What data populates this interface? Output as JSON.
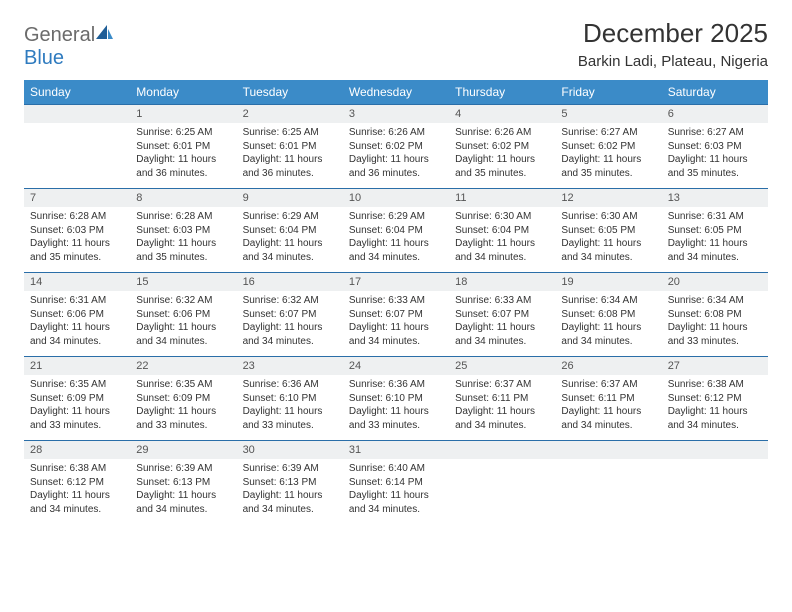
{
  "brand": {
    "part1": "General",
    "part2": "Blue"
  },
  "title": "December 2025",
  "location": "Barkin Ladi, Plateau, Nigeria",
  "colors": {
    "header_bg": "#3b8bc8",
    "header_text": "#ffffff",
    "daynum_bg": "#eef0f1",
    "daynum_border": "#2a6ea8",
    "text": "#333333",
    "logo_gray": "#6b6b6b",
    "logo_blue": "#2f7bbf"
  },
  "weekdays": [
    "Sunday",
    "Monday",
    "Tuesday",
    "Wednesday",
    "Thursday",
    "Friday",
    "Saturday"
  ],
  "weeks": [
    [
      null,
      {
        "n": "1",
        "sr": "6:25 AM",
        "ss": "6:01 PM",
        "dl": "11 hours and 36 minutes."
      },
      {
        "n": "2",
        "sr": "6:25 AM",
        "ss": "6:01 PM",
        "dl": "11 hours and 36 minutes."
      },
      {
        "n": "3",
        "sr": "6:26 AM",
        "ss": "6:02 PM",
        "dl": "11 hours and 36 minutes."
      },
      {
        "n": "4",
        "sr": "6:26 AM",
        "ss": "6:02 PM",
        "dl": "11 hours and 35 minutes."
      },
      {
        "n": "5",
        "sr": "6:27 AM",
        "ss": "6:02 PM",
        "dl": "11 hours and 35 minutes."
      },
      {
        "n": "6",
        "sr": "6:27 AM",
        "ss": "6:03 PM",
        "dl": "11 hours and 35 minutes."
      }
    ],
    [
      {
        "n": "7",
        "sr": "6:28 AM",
        "ss": "6:03 PM",
        "dl": "11 hours and 35 minutes."
      },
      {
        "n": "8",
        "sr": "6:28 AM",
        "ss": "6:03 PM",
        "dl": "11 hours and 35 minutes."
      },
      {
        "n": "9",
        "sr": "6:29 AM",
        "ss": "6:04 PM",
        "dl": "11 hours and 34 minutes."
      },
      {
        "n": "10",
        "sr": "6:29 AM",
        "ss": "6:04 PM",
        "dl": "11 hours and 34 minutes."
      },
      {
        "n": "11",
        "sr": "6:30 AM",
        "ss": "6:04 PM",
        "dl": "11 hours and 34 minutes."
      },
      {
        "n": "12",
        "sr": "6:30 AM",
        "ss": "6:05 PM",
        "dl": "11 hours and 34 minutes."
      },
      {
        "n": "13",
        "sr": "6:31 AM",
        "ss": "6:05 PM",
        "dl": "11 hours and 34 minutes."
      }
    ],
    [
      {
        "n": "14",
        "sr": "6:31 AM",
        "ss": "6:06 PM",
        "dl": "11 hours and 34 minutes."
      },
      {
        "n": "15",
        "sr": "6:32 AM",
        "ss": "6:06 PM",
        "dl": "11 hours and 34 minutes."
      },
      {
        "n": "16",
        "sr": "6:32 AM",
        "ss": "6:07 PM",
        "dl": "11 hours and 34 minutes."
      },
      {
        "n": "17",
        "sr": "6:33 AM",
        "ss": "6:07 PM",
        "dl": "11 hours and 34 minutes."
      },
      {
        "n": "18",
        "sr": "6:33 AM",
        "ss": "6:07 PM",
        "dl": "11 hours and 34 minutes."
      },
      {
        "n": "19",
        "sr": "6:34 AM",
        "ss": "6:08 PM",
        "dl": "11 hours and 34 minutes."
      },
      {
        "n": "20",
        "sr": "6:34 AM",
        "ss": "6:08 PM",
        "dl": "11 hours and 33 minutes."
      }
    ],
    [
      {
        "n": "21",
        "sr": "6:35 AM",
        "ss": "6:09 PM",
        "dl": "11 hours and 33 minutes."
      },
      {
        "n": "22",
        "sr": "6:35 AM",
        "ss": "6:09 PM",
        "dl": "11 hours and 33 minutes."
      },
      {
        "n": "23",
        "sr": "6:36 AM",
        "ss": "6:10 PM",
        "dl": "11 hours and 33 minutes."
      },
      {
        "n": "24",
        "sr": "6:36 AM",
        "ss": "6:10 PM",
        "dl": "11 hours and 33 minutes."
      },
      {
        "n": "25",
        "sr": "6:37 AM",
        "ss": "6:11 PM",
        "dl": "11 hours and 34 minutes."
      },
      {
        "n": "26",
        "sr": "6:37 AM",
        "ss": "6:11 PM",
        "dl": "11 hours and 34 minutes."
      },
      {
        "n": "27",
        "sr": "6:38 AM",
        "ss": "6:12 PM",
        "dl": "11 hours and 34 minutes."
      }
    ],
    [
      {
        "n": "28",
        "sr": "6:38 AM",
        "ss": "6:12 PM",
        "dl": "11 hours and 34 minutes."
      },
      {
        "n": "29",
        "sr": "6:39 AM",
        "ss": "6:13 PM",
        "dl": "11 hours and 34 minutes."
      },
      {
        "n": "30",
        "sr": "6:39 AM",
        "ss": "6:13 PM",
        "dl": "11 hours and 34 minutes."
      },
      {
        "n": "31",
        "sr": "6:40 AM",
        "ss": "6:14 PM",
        "dl": "11 hours and 34 minutes."
      },
      null,
      null,
      null
    ]
  ],
  "labels": {
    "sunrise": "Sunrise:",
    "sunset": "Sunset:",
    "daylight": "Daylight:"
  }
}
